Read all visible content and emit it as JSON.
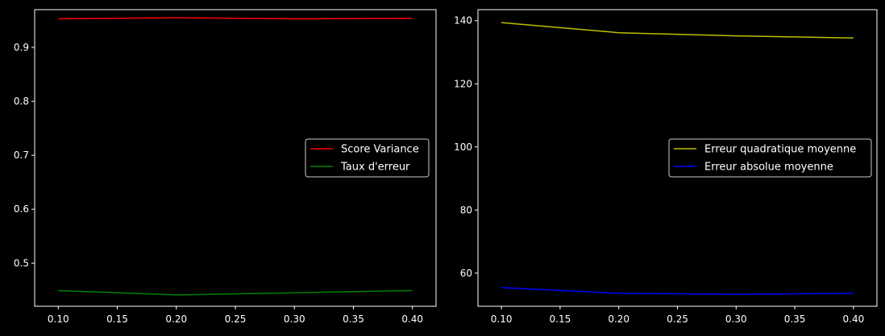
{
  "chart_data": [
    {
      "type": "line",
      "x": [
        0.1,
        0.2,
        0.3,
        0.4
      ],
      "xlim": [
        0.08,
        0.42
      ],
      "ylim": [
        0.42,
        0.97
      ],
      "xticks": [
        "0.10",
        "0.15",
        "0.20",
        "0.25",
        "0.30",
        "0.35",
        "0.40"
      ],
      "xtick_values": [
        0.1,
        0.15,
        0.2,
        0.25,
        0.3,
        0.35,
        0.4
      ],
      "yticks": [
        "0.5",
        "0.6",
        "0.7",
        "0.8",
        "0.9"
      ],
      "ytick_values": [
        0.5,
        0.6,
        0.7,
        0.8,
        0.9
      ],
      "legend_position": "center-right",
      "grid": false,
      "series": [
        {
          "name": "Score Variance",
          "color": "#ff0000",
          "values": [
            0.953,
            0.955,
            0.953,
            0.954
          ]
        },
        {
          "name": "Taux d'erreur",
          "color": "#008000",
          "values": [
            0.449,
            0.441,
            0.445,
            0.449
          ]
        }
      ]
    },
    {
      "type": "line",
      "x": [
        0.1,
        0.2,
        0.3,
        0.4
      ],
      "xlim": [
        0.08,
        0.42
      ],
      "ylim": [
        49.5,
        143.5
      ],
      "xticks": [
        "0.10",
        "0.15",
        "0.20",
        "0.25",
        "0.30",
        "0.35",
        "0.40"
      ],
      "xtick_values": [
        0.1,
        0.15,
        0.2,
        0.25,
        0.3,
        0.35,
        0.4
      ],
      "yticks": [
        "60",
        "80",
        "100",
        "120",
        "140"
      ],
      "ytick_values": [
        60,
        80,
        100,
        120,
        140
      ],
      "legend_position": "center-right",
      "grid": false,
      "series": [
        {
          "name": "Erreur quadratique moyenne",
          "color": "#bfbf00",
          "values": [
            139.4,
            136.2,
            135.2,
            134.5
          ]
        },
        {
          "name": "Erreur absolue moyenne",
          "color": "#0000ff",
          "values": [
            55.4,
            53.6,
            53.3,
            53.6
          ]
        }
      ]
    }
  ]
}
